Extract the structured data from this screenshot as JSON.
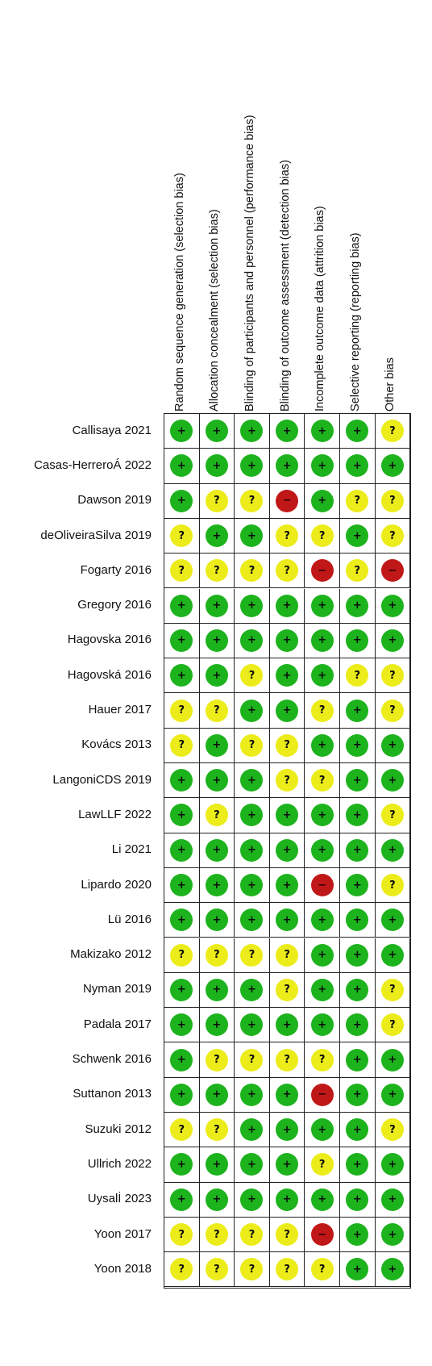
{
  "colors": {
    "low": "#1db31d",
    "unclear": "#ecec1a",
    "high": "#c01818"
  },
  "symbols": {
    "low": "+",
    "unclear": "?",
    "high": "−"
  },
  "domains": [
    "Random sequence generation (selection bias)",
    "Allocation concealment (selection bias)",
    "Blinding of participants and personnel (performance bias)",
    "Blinding of outcome assessment (detection bias)",
    "Incomplete outcome data (attrition bias)",
    "Selective reporting (reporting bias)",
    "Other bias"
  ],
  "studies": [
    {
      "name": "Callisaya 2021",
      "ratings": [
        "low",
        "low",
        "low",
        "low",
        "low",
        "low",
        "unclear"
      ]
    },
    {
      "name": "Casas-HerreroÁ 2022",
      "ratings": [
        "low",
        "low",
        "low",
        "low",
        "low",
        "low",
        "low"
      ]
    },
    {
      "name": "Dawson 2019",
      "ratings": [
        "low",
        "unclear",
        "unclear",
        "high",
        "low",
        "unclear",
        "unclear"
      ]
    },
    {
      "name": "deOliveiraSilva 2019",
      "ratings": [
        "unclear",
        "low",
        "low",
        "unclear",
        "unclear",
        "low",
        "unclear"
      ]
    },
    {
      "name": "Fogarty 2016",
      "ratings": [
        "unclear",
        "unclear",
        "unclear",
        "unclear",
        "high",
        "unclear",
        "high"
      ]
    },
    {
      "name": "Gregory 2016",
      "ratings": [
        "low",
        "low",
        "low",
        "low",
        "low",
        "low",
        "low"
      ]
    },
    {
      "name": "Hagovska 2016",
      "ratings": [
        "low",
        "low",
        "low",
        "low",
        "low",
        "low",
        "low"
      ]
    },
    {
      "name": "Hagovská 2016",
      "ratings": [
        "low",
        "low",
        "unclear",
        "low",
        "low",
        "unclear",
        "unclear"
      ]
    },
    {
      "name": "Hauer 2017",
      "ratings": [
        "unclear",
        "unclear",
        "low",
        "low",
        "unclear",
        "low",
        "unclear"
      ]
    },
    {
      "name": "Kovács 2013",
      "ratings": [
        "unclear",
        "low",
        "unclear",
        "unclear",
        "low",
        "low",
        "low"
      ]
    },
    {
      "name": "LangoniCDS 2019",
      "ratings": [
        "low",
        "low",
        "low",
        "unclear",
        "unclear",
        "low",
        "low"
      ]
    },
    {
      "name": "LawLLF 2022",
      "ratings": [
        "low",
        "unclear",
        "low",
        "low",
        "low",
        "low",
        "unclear"
      ]
    },
    {
      "name": "Li 2021",
      "ratings": [
        "low",
        "low",
        "low",
        "low",
        "low",
        "low",
        "low"
      ]
    },
    {
      "name": "Lipardo 2020",
      "ratings": [
        "low",
        "low",
        "low",
        "low",
        "high",
        "low",
        "unclear"
      ]
    },
    {
      "name": "Lü 2016",
      "ratings": [
        "low",
        "low",
        "low",
        "low",
        "low",
        "low",
        "low"
      ]
    },
    {
      "name": "Makizako 2012",
      "ratings": [
        "unclear",
        "unclear",
        "unclear",
        "unclear",
        "low",
        "low",
        "low"
      ]
    },
    {
      "name": "Nyman 2019",
      "ratings": [
        "low",
        "low",
        "low",
        "unclear",
        "low",
        "low",
        "unclear"
      ]
    },
    {
      "name": "Padala 2017",
      "ratings": [
        "low",
        "low",
        "low",
        "low",
        "low",
        "low",
        "unclear"
      ]
    },
    {
      "name": "Schwenk 2016",
      "ratings": [
        "low",
        "unclear",
        "unclear",
        "unclear",
        "unclear",
        "low",
        "low"
      ]
    },
    {
      "name": "Suttanon 2013",
      "ratings": [
        "low",
        "low",
        "low",
        "low",
        "high",
        "low",
        "low"
      ]
    },
    {
      "name": "Suzuki 2012",
      "ratings": [
        "unclear",
        "unclear",
        "low",
        "low",
        "low",
        "low",
        "unclear"
      ]
    },
    {
      "name": "Ullrich 2022",
      "ratings": [
        "low",
        "low",
        "low",
        "low",
        "unclear",
        "low",
        "low"
      ]
    },
    {
      "name": "Uysalİ 2023",
      "ratings": [
        "low",
        "low",
        "low",
        "low",
        "low",
        "low",
        "low"
      ]
    },
    {
      "name": "Yoon 2017",
      "ratings": [
        "unclear",
        "unclear",
        "unclear",
        "unclear",
        "high",
        "low",
        "low"
      ]
    },
    {
      "name": "Yoon 2018",
      "ratings": [
        "unclear",
        "unclear",
        "unclear",
        "unclear",
        "unclear",
        "low",
        "low"
      ]
    }
  ]
}
